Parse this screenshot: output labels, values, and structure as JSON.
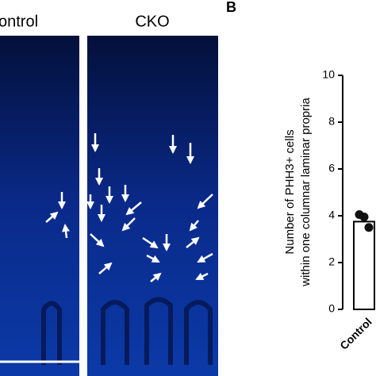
{
  "panels": {
    "left_title": "ontrol",
    "middle_title": "CKO",
    "panel_letter": "B"
  },
  "chart_data": {
    "type": "bar",
    "y_label": [
      "Number of PHH3+ cells",
      "within one columnar laminar propria"
    ],
    "categories": [
      "Control"
    ],
    "values": [
      3.75
    ],
    "color": "#ffffff",
    "points": [
      [
        4.05,
        3.95,
        3.5
      ]
    ],
    "ylim": [
      0,
      10
    ],
    "yticks": [
      0,
      2,
      4,
      6,
      8,
      10
    ]
  }
}
